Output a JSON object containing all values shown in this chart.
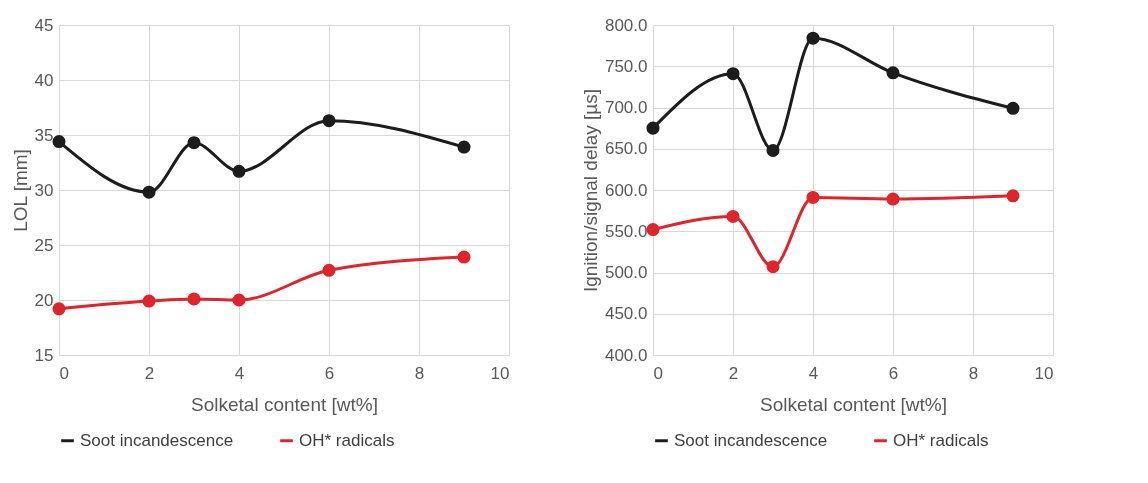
{
  "chart_data": [
    {
      "type": "line",
      "xlabel": "Solketal content [wt%]",
      "ylabel": "LOL [mm]",
      "xlim": [
        0,
        10
      ],
      "xticks": [
        0,
        2,
        4,
        6,
        8,
        10
      ],
      "ylim": [
        15,
        45
      ],
      "yticks": [
        15,
        20,
        25,
        30,
        35,
        40,
        45
      ],
      "grid": true,
      "legend": "bottom",
      "marker": "circle",
      "line_style": "solid",
      "x": [
        0,
        2,
        3,
        4,
        6,
        9
      ],
      "series": [
        {
          "name": "Soot incandescence",
          "color": "#1c1c1c",
          "values": [
            34.4,
            29.8,
            34.3,
            31.7,
            36.3,
            33.9
          ]
        },
        {
          "name": "OH* radicals",
          "color": "#e0242b",
          "values": [
            19.2,
            19.9,
            20.1,
            20.0,
            22.7,
            23.9
          ]
        }
      ]
    },
    {
      "type": "line",
      "xlabel": "Solketal content [wt%]",
      "ylabel": "Ignition/signal delay [µs]",
      "xlim": [
        0,
        10
      ],
      "xticks": [
        0,
        2,
        4,
        6,
        8,
        10
      ],
      "ylim": [
        400,
        800
      ],
      "yticks": [
        {
          "value": 400,
          "label": "400.0"
        },
        {
          "value": 450,
          "label": "450.0"
        },
        {
          "value": 500,
          "label": "500.0"
        },
        {
          "value": 550,
          "label": "550.0"
        },
        {
          "value": 600,
          "label": "600.0"
        },
        {
          "value": 650,
          "label": "650.0"
        },
        {
          "value": 700,
          "label": "700.0"
        },
        {
          "value": 750,
          "label": "750.0"
        },
        {
          "value": 800,
          "label": "800.0"
        }
      ],
      "grid": true,
      "legend": "bottom",
      "marker": "circle",
      "line_style": "solid",
      "x": [
        0,
        2,
        3,
        4,
        6,
        9
      ],
      "series": [
        {
          "name": "Soot incandescence",
          "color": "#1c1c1c",
          "values": [
            675,
            741,
            648,
            784,
            742,
            699
          ]
        },
        {
          "name": "OH* radicals",
          "color": "#e0242b",
          "values": [
            552,
            568,
            507,
            591,
            589,
            593
          ]
        }
      ]
    }
  ]
}
